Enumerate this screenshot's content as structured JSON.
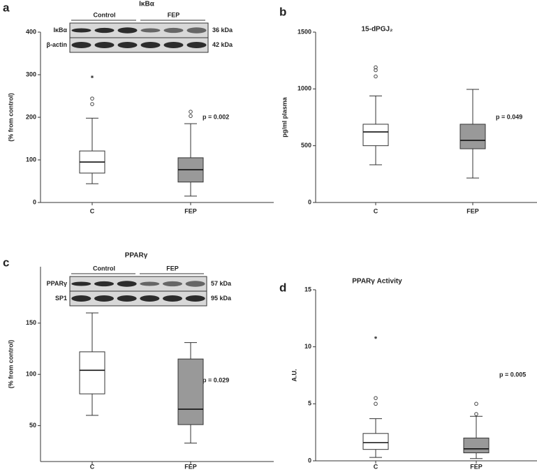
{
  "chart_data": [
    {
      "type": "box",
      "panel": "a",
      "title": "IκBα",
      "ylabel": "(% from control)",
      "categories": [
        "C",
        "FEP"
      ],
      "colors": [
        "#ffffff",
        "#999999"
      ],
      "boxes": [
        {
          "whisker_low": 44,
          "q1": 69,
          "median": 95,
          "q3": 121,
          "whisker_high": 198,
          "outliers": [
            231,
            244
          ],
          "extremes": [
            295
          ]
        },
        {
          "whisker_low": 15,
          "q1": 48,
          "median": 77,
          "q3": 105,
          "whisker_high": 185,
          "outliers": [
            203,
            213
          ]
        }
      ],
      "ylim": [
        0,
        400
      ],
      "yticks": [
        0,
        100,
        200,
        300,
        400
      ],
      "annotation": "p = 0.002",
      "blot": {
        "groups": [
          "Control",
          "FEP"
        ],
        "rows": [
          {
            "protein": "IκBα",
            "size": "36 kDa"
          },
          {
            "protein": "β-actin",
            "size": "42 kDa"
          }
        ]
      }
    },
    {
      "type": "box",
      "panel": "b",
      "title": "15-dPGJ₂",
      "ylabel": "pg/ml plasma",
      "categories": [
        "C",
        "FEP"
      ],
      "colors": [
        "#ffffff",
        "#999999"
      ],
      "boxes": [
        {
          "whisker_low": 332,
          "q1": 500,
          "median": 621,
          "q3": 689,
          "whisker_high": 938,
          "outliers": [
            1110,
            1165,
            1190
          ]
        },
        {
          "whisker_low": 215,
          "q1": 473,
          "median": 547,
          "q3": 689,
          "whisker_high": 996
        }
      ],
      "ylim": [
        0,
        1500
      ],
      "yticks": [
        0,
        500,
        1000,
        1500
      ],
      "annotation": "p = 0.049"
    },
    {
      "type": "box",
      "panel": "c",
      "title": "PPARγ",
      "ylabel": "(% from control)",
      "categories": [
        "C",
        "FEP"
      ],
      "colors": [
        "#ffffff",
        "#999999"
      ],
      "boxes": [
        {
          "whisker_low": 60,
          "q1": 81,
          "median": 104,
          "q3": 122,
          "whisker_high": 160
        },
        {
          "whisker_low": 33,
          "q1": 51,
          "median": 66,
          "q3": 115,
          "whisker_high": 131
        }
      ],
      "ylim": [
        15,
        205
      ],
      "yticks": [
        50,
        100,
        150
      ],
      "annotation": "p = 0.029",
      "blot": {
        "groups": [
          "Control",
          "FEP"
        ],
        "rows": [
          {
            "protein": "PPARγ",
            "size": "57 kDa"
          },
          {
            "protein": "SP1",
            "size": "95 kDa"
          }
        ]
      }
    },
    {
      "type": "box",
      "panel": "d",
      "title": "PPARγ Activity",
      "ylabel": "A.U.",
      "categories": [
        "C",
        "FEP"
      ],
      "colors": [
        "#ffffff",
        "#999999"
      ],
      "boxes": [
        {
          "whisker_low": 0.3,
          "q1": 1.0,
          "median": 1.6,
          "q3": 2.4,
          "whisker_high": 3.7,
          "outliers": [
            5.0,
            5.5
          ],
          "extremes": [
            10.8
          ]
        },
        {
          "whisker_low": 0.2,
          "q1": 0.7,
          "median": 1.05,
          "q3": 2.0,
          "whisker_high": 3.9,
          "outliers": [
            4.1,
            5.0
          ]
        }
      ],
      "ylim": [
        0,
        15
      ],
      "yticks": [
        0,
        5,
        10,
        15
      ],
      "annotation": "p = 0.005"
    }
  ]
}
